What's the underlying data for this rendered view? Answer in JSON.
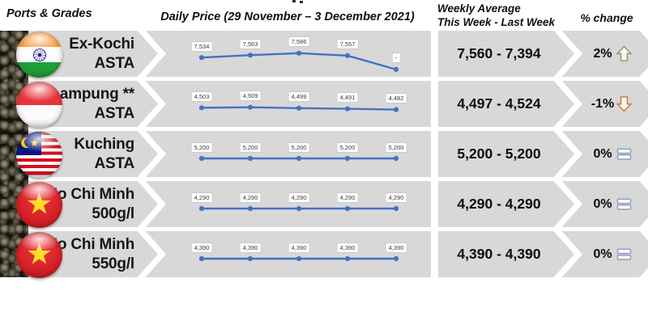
{
  "header": {
    "ports_grades": "Ports & Grades",
    "daily_price": "Daily Price (29 November – 3 December 2021)",
    "weekly_avg_line1": "Weekly Average",
    "weekly_avg_line2": "This Week - Last Week",
    "pct_change": "% change"
  },
  "rows": [
    {
      "port": "Ex-Kochi",
      "grade": "ASTA",
      "flag": "india",
      "daily_values": [
        7534,
        7563,
        7586,
        7557,
        null
      ],
      "plot_values": [
        7534,
        7563,
        7586,
        7557,
        7394
      ],
      "daily_point_labels": [
        "7,534",
        "7,563",
        "7,586",
        "7,557",
        "-"
      ],
      "weekly_average": "7,560 - 7,394",
      "pct_change": "2%",
      "trend": "up"
    },
    {
      "port": "Lampung **",
      "grade": "ASTA",
      "flag": "indonesia",
      "daily_values": [
        4503,
        4509,
        4499,
        4491,
        4482
      ],
      "plot_values": [
        4503,
        4509,
        4499,
        4491,
        4482
      ],
      "daily_point_labels": [
        "4,503",
        "4,509",
        "4,499",
        "4,491",
        "4,482"
      ],
      "weekly_average": "4,497 - 4,524",
      "pct_change": "-1%",
      "trend": "down"
    },
    {
      "port": "Kuching",
      "grade": "ASTA",
      "flag": "malaysia",
      "daily_values": [
        5200,
        5200,
        5200,
        5200,
        5200
      ],
      "plot_values": [
        5200,
        5200,
        5200,
        5200,
        5200
      ],
      "daily_point_labels": [
        "5,200",
        "5,200",
        "5,200",
        "5,200",
        "5,200"
      ],
      "weekly_average": "5,200 - 5,200",
      "pct_change": "0%",
      "trend": "equal"
    },
    {
      "port": "Ho Chi Minh",
      "grade": "500g/l",
      "flag": "vietnam",
      "daily_values": [
        4290,
        4290,
        4290,
        4290,
        4290
      ],
      "plot_values": [
        4290,
        4290,
        4290,
        4290,
        4290
      ],
      "daily_point_labels": [
        "4,290",
        "4,290",
        "4,290",
        "4,290",
        "4,290"
      ],
      "weekly_average": "4,290 - 4,290",
      "pct_change": "0%",
      "trend": "equal"
    },
    {
      "port": "Ho Chi Minh",
      "grade": "550g/l",
      "flag": "vietnam",
      "daily_values": [
        4390,
        4390,
        4390,
        4390,
        4390
      ],
      "plot_values": [
        4390,
        4390,
        4390,
        4390,
        4390
      ],
      "daily_point_labels": [
        "4,390",
        "4,390",
        "4,390",
        "4,390",
        "4,390"
      ],
      "weekly_average": "4,390 - 4,390",
      "pct_change": "0%",
      "trend": "equal"
    }
  ],
  "chart_data": [
    {
      "type": "line",
      "title": "Ex-Kochi ASTA daily price",
      "x_range_label": "29 November – 3 December 2021",
      "values": [
        7534,
        7563,
        7586,
        7557,
        null
      ],
      "point_labels": [
        "7,534",
        "7,563",
        "7,586",
        "7,557",
        "-"
      ],
      "line_color": "#4472c4",
      "legend": "none",
      "grid": false
    },
    {
      "type": "line",
      "title": "Lampung ** ASTA daily price",
      "x_range_label": "29 November – 3 December 2021",
      "values": [
        4503,
        4509,
        4499,
        4491,
        4482
      ],
      "point_labels": [
        "4,503",
        "4,509",
        "4,499",
        "4,491",
        "4,482"
      ],
      "line_color": "#4472c4",
      "legend": "none",
      "grid": false
    },
    {
      "type": "line",
      "title": "Kuching ASTA daily price",
      "x_range_label": "29 November – 3 December 2021",
      "values": [
        5200,
        5200,
        5200,
        5200,
        5200
      ],
      "point_labels": [
        "5,200",
        "5,200",
        "5,200",
        "5,200",
        "5,200"
      ],
      "line_color": "#4472c4",
      "legend": "none",
      "grid": false
    },
    {
      "type": "line",
      "title": "Ho Chi Minh 500g/l daily price",
      "x_range_label": "29 November – 3 December 2021",
      "values": [
        4290,
        4290,
        4290,
        4290,
        4290
      ],
      "point_labels": [
        "4,290",
        "4,290",
        "4,290",
        "4,290",
        "4,290"
      ],
      "line_color": "#4472c4",
      "legend": "none",
      "grid": false
    },
    {
      "type": "line",
      "title": "Ho Chi Minh 550g/l daily price",
      "x_range_label": "29 November – 3 December 2021",
      "values": [
        4390,
        4390,
        4390,
        4390,
        4390
      ],
      "point_labels": [
        "4,390",
        "4,390",
        "4,390",
        "4,390",
        "4,390"
      ],
      "line_color": "#4472c4",
      "legend": "none",
      "grid": false
    }
  ],
  "colors": {
    "band": "#d8d8d8",
    "line": "#4472c4",
    "up_arrow": "#9c9a7a",
    "down_arrow": "#c08552",
    "equal_icon": "#93a1c8"
  },
  "glyphs": {
    "vietnam_star": "★"
  }
}
